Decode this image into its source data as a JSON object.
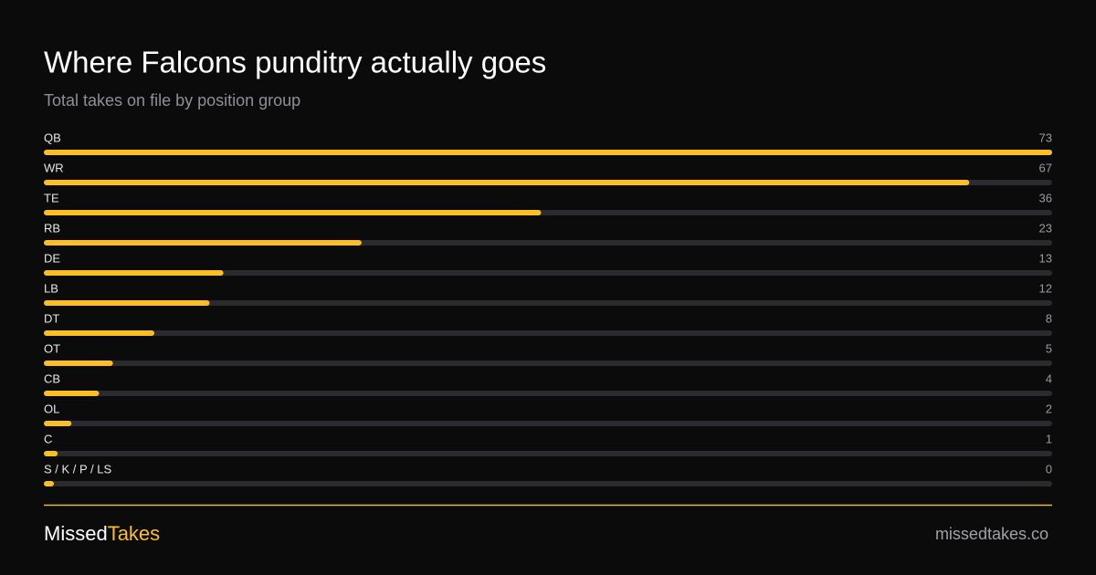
{
  "chart_data": {
    "type": "bar",
    "orientation": "horizontal",
    "title": "Where Falcons punditry actually goes",
    "subtitle": "Total takes on file by position group",
    "categories": [
      "QB",
      "WR",
      "TE",
      "RB",
      "DE",
      "LB",
      "DT",
      "OT",
      "CB",
      "OL",
      "C",
      "S / K / P / LS"
    ],
    "values": [
      73,
      67,
      36,
      23,
      13,
      12,
      8,
      5,
      4,
      2,
      1,
      0
    ],
    "color": "#fbbf24",
    "track_color": "#2a2a2f",
    "xlim": [
      0,
      73
    ]
  },
  "footer": {
    "brand": [
      "Missed",
      "Takes"
    ],
    "url": "missedtakes.co"
  }
}
